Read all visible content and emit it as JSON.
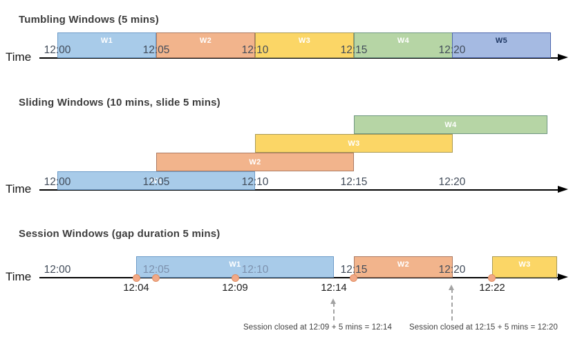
{
  "colors": {
    "window_blue_fill": "#A8CBE9",
    "window_blue_border": "#6D9BC8",
    "window_orange_fill": "#F2B48C",
    "window_orange_border": "#AB7A62",
    "window_yellow_fill": "#FBD666",
    "window_yellow_border": "#A99A55",
    "window_green_fill": "#B6D5A5",
    "window_green_border": "#6E9681",
    "window_blue_dark_fill": "#A5BAE2",
    "window_blue_dark_border": "#4E67AE",
    "window_label_light": "#FFFFFF",
    "window_label_dark": "#1F3864",
    "event_dot_fill": "#F2A987",
    "event_dot_border": "#E08F64",
    "axis": "#000000",
    "annotation_gray": "#A3A3A3",
    "tick_text": "#414B59",
    "tick_text_muted": "#7C90AC"
  },
  "sections": [
    {
      "id": "tumbling",
      "title": "Tumbling Windows (5 mins)",
      "time_label": "Time",
      "ticks": [
        {
          "text": "12:00",
          "min": 0
        },
        {
          "text": "12:05",
          "min": 5
        },
        {
          "text": "12:10",
          "min": 10
        },
        {
          "text": "12:15",
          "min": 15
        },
        {
          "text": "12:20",
          "min": 20
        }
      ],
      "windows": [
        {
          "label": "W1",
          "start_min": 0,
          "end_min": 5,
          "color": "blue"
        },
        {
          "label": "W2",
          "start_min": 5,
          "end_min": 10,
          "color": "orange"
        },
        {
          "label": "W3",
          "start_min": 10,
          "end_min": 15,
          "color": "yellow"
        },
        {
          "label": "W4",
          "start_min": 15,
          "end_min": 20,
          "color": "green"
        },
        {
          "label": "W5",
          "start_min": 20,
          "end_min": 25,
          "color": "blue2",
          "label_variant": "dark"
        }
      ]
    },
    {
      "id": "sliding",
      "title": "Sliding Windows (10 mins, slide 5 mins)",
      "time_label": "Time",
      "ticks": [
        {
          "text": "12:00",
          "min": 0
        },
        {
          "text": "12:05",
          "min": 5
        },
        {
          "text": "12:10",
          "min": 10
        },
        {
          "text": "12:15",
          "min": 15
        },
        {
          "text": "12:20",
          "min": 20
        }
      ],
      "windows": [
        {
          "label": "W1",
          "start_min": 0,
          "end_min": 10,
          "color": "blue",
          "row": 0
        },
        {
          "label": "W2",
          "start_min": 5,
          "end_min": 15,
          "color": "orange",
          "row": 1
        },
        {
          "label": "W3",
          "start_min": 10,
          "end_min": 20,
          "color": "yellow",
          "row": 2
        },
        {
          "label": "W4",
          "start_min": 15,
          "end_min": 24.8,
          "color": "green",
          "row": 3
        }
      ]
    },
    {
      "id": "session",
      "title": "Session Windows (gap duration 5 mins)",
      "time_label": "Time",
      "ticks": [
        {
          "text": "12:00",
          "min": 0
        },
        {
          "text": "12:05",
          "min": 5,
          "muted": true
        },
        {
          "text": "12:10",
          "min": 10,
          "muted": true
        },
        {
          "text": "12:15",
          "min": 15
        },
        {
          "text": "12:20",
          "min": 20
        }
      ],
      "windows": [
        {
          "label": "W1",
          "start_min": 4,
          "end_min": 14,
          "color": "blue"
        },
        {
          "label": "W2",
          "start_min": 15,
          "end_min": 20,
          "color": "orange"
        },
        {
          "label": "W3",
          "start_min": 22,
          "end_min": 25.3,
          "color": "yellow"
        }
      ],
      "events": [
        {
          "min": 4
        },
        {
          "min": 5
        },
        {
          "min": 9
        },
        {
          "min": 15
        },
        {
          "min": 22
        }
      ],
      "event_labels": [
        {
          "text": "12:04",
          "min": 4
        },
        {
          "text": "12:09",
          "min": 9
        },
        {
          "text": "12:14",
          "min": 14
        },
        {
          "text": "12:22",
          "min": 22
        }
      ],
      "annotations": [
        {
          "text": "Session closed at 12:09 + 5 mins = 12:14",
          "arrow_min": 14
        },
        {
          "text": "Session closed at 12:15 + 5 mins = 12:20",
          "arrow_min": 20
        }
      ]
    }
  ]
}
